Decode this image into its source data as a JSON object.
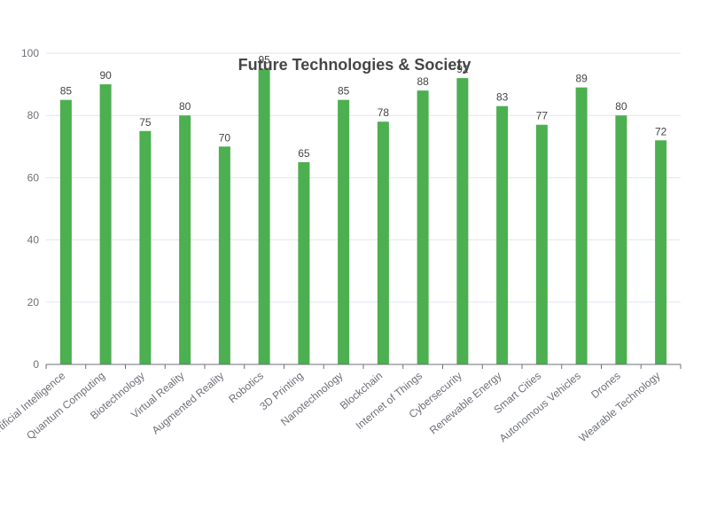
{
  "chart_data": {
    "type": "bar",
    "title": "Future Technologies & Society",
    "categories": [
      "Artificial Intelligence",
      "Quantum Computing",
      "Biotechnology",
      "Virtual Reality",
      "Augmented Reality",
      "Robotics",
      "3D Printing",
      "Nanotechnology",
      "Blockchain",
      "Internet of Things",
      "Cybersecurity",
      "Renewable Energy",
      "Smart Cities",
      "Autonomous Vehicles",
      "Drones",
      "Wearable Technology"
    ],
    "series": [
      {
        "values": [
          85,
          90,
          75,
          80,
          70,
          95,
          65,
          85,
          78,
          88,
          92,
          83,
          77,
          89,
          80,
          72
        ],
        "color": "#4caf50"
      }
    ],
    "ylim": [
      0,
      100
    ],
    "yticks": [
      0,
      20,
      40,
      60,
      80,
      100
    ],
    "grid": true,
    "data_labels": true,
    "colors": {
      "bar": "#4caf50",
      "grid": "#e0e6f1",
      "axis": "#6e7079",
      "title": "#464646",
      "label": "#444444"
    }
  }
}
